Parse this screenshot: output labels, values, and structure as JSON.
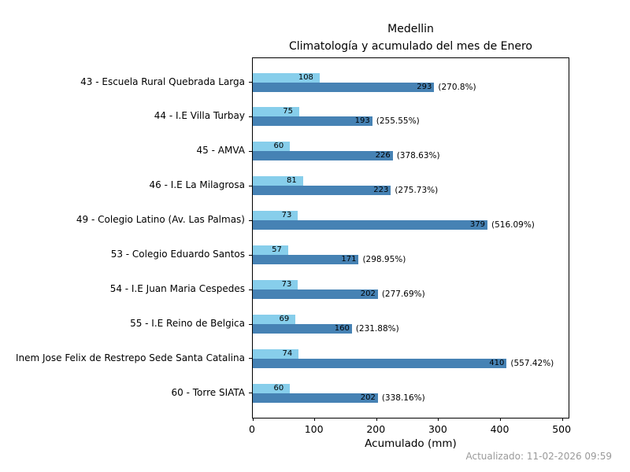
{
  "title": {
    "line1": "Medellin",
    "line2": "Climatología y acumulado del mes de Enero"
  },
  "axis": {
    "xlabel": "Acumulado (mm)",
    "x_tick_labels": [
      "0",
      "100",
      "200",
      "300",
      "400",
      "500"
    ]
  },
  "footer": {
    "text": "Actualizado: 11-02-2026 09:59"
  },
  "colors": {
    "climatologia_bar": "#87CEEB",
    "acumulado_bar": "#4682B4",
    "axis_line": "#000000",
    "footer_text": "#9a9a9a"
  },
  "chart_data": {
    "type": "bar",
    "orientation": "horizontal",
    "title": "Medellin — Climatología y acumulado del mes de Enero",
    "xlabel": "Acumulado (mm)",
    "xlim": [
      0,
      510
    ],
    "x_ticks": [
      0,
      100,
      200,
      300,
      400,
      500
    ],
    "grid": false,
    "legend": "none",
    "categories": [
      "43 - Escuela Rural Quebrada Larga",
      "44 - I.E Villa Turbay",
      "45 - AMVA",
      "46 - I.E La Milagrosa",
      "49 - Colegio Latino (Av. Las Palmas)",
      "53 - Colegio Eduardo Santos",
      "54 - I.E Juan Maria Cespedes",
      "55 - I.E Reino de Belgica",
      "Inem Jose Felix de Restrepo Sede Santa Catalina",
      "60 - Torre SIATA"
    ],
    "series": [
      {
        "name": "Climatología",
        "color": "#87CEEB",
        "values": [
          108,
          75,
          60,
          81,
          73,
          57,
          73,
          69,
          74,
          60
        ]
      },
      {
        "name": "Acumulado",
        "color": "#4682B4",
        "values": [
          293,
          193,
          226,
          223,
          379,
          171,
          202,
          160,
          410,
          202
        ]
      }
    ],
    "pct_labels": [
      "(270.8%)",
      "(255.55%)",
      "(378.63%)",
      "(275.73%)",
      "(516.09%)",
      "(298.95%)",
      "(277.69%)",
      "(231.88%)",
      "(557.42%)",
      "(338.16%)"
    ]
  }
}
